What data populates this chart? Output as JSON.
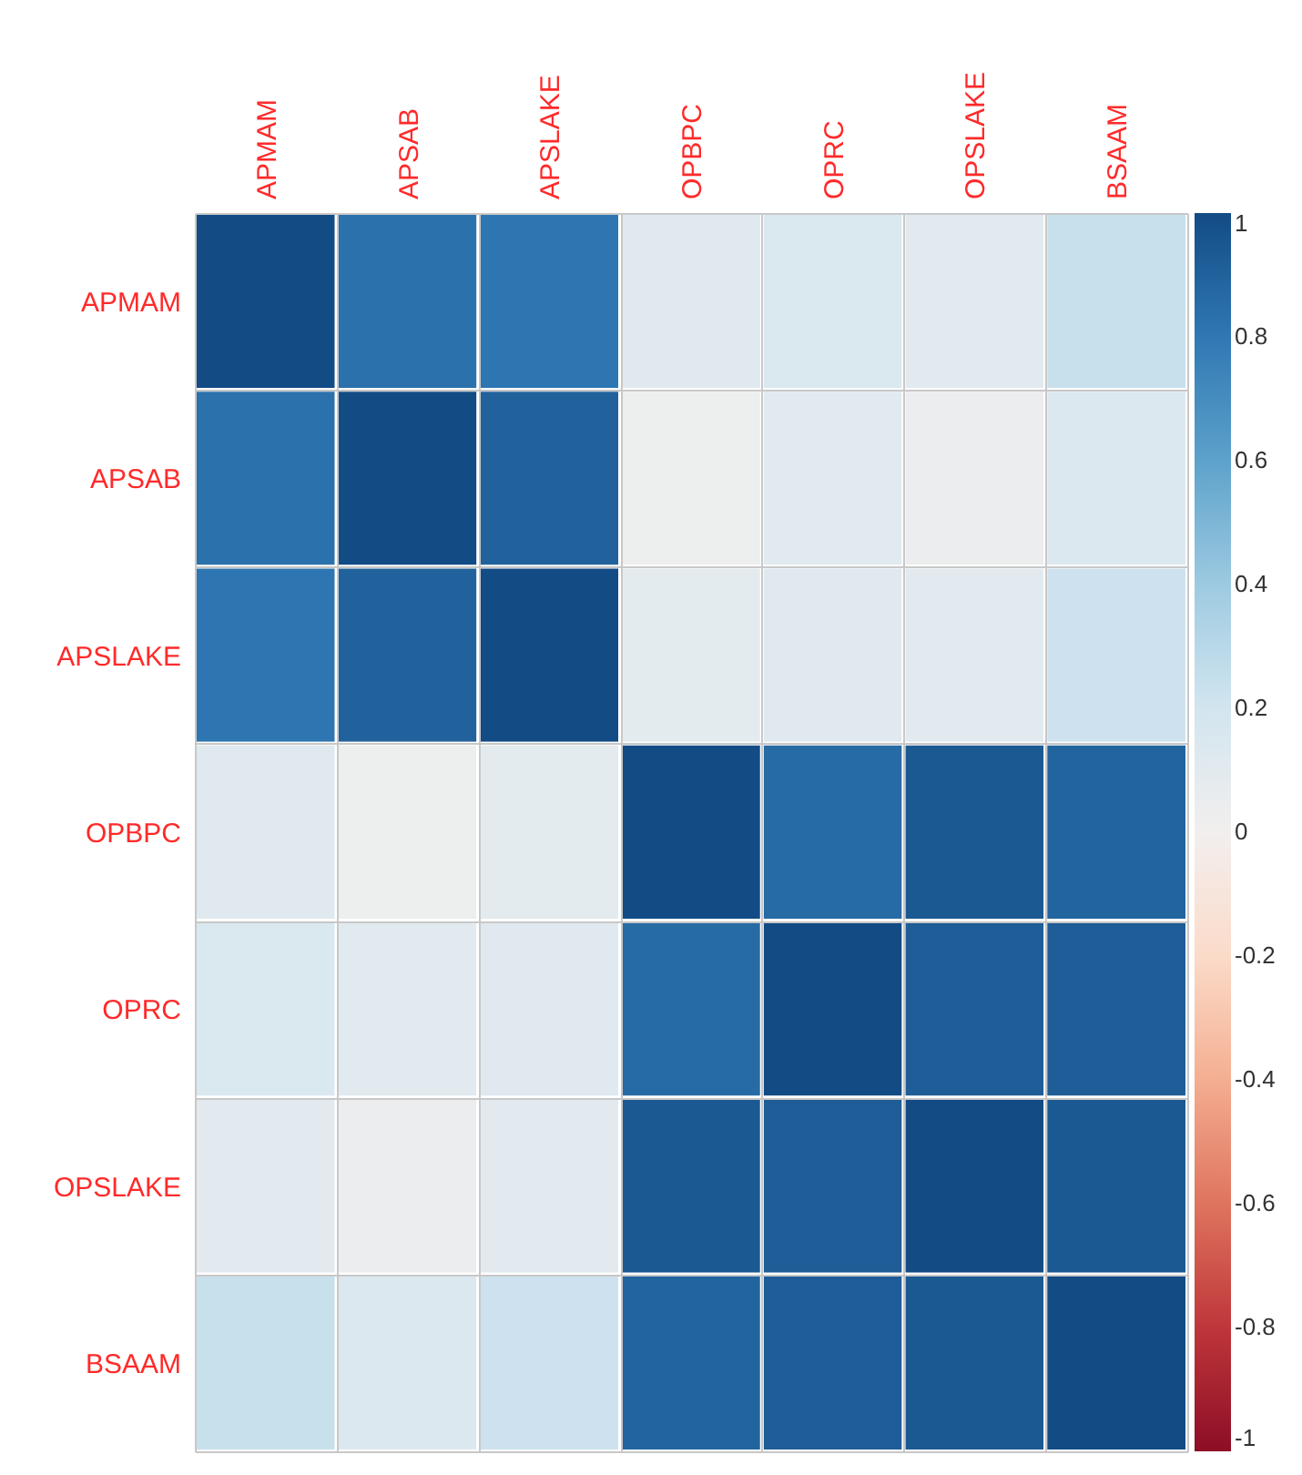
{
  "chart_data": {
    "type": "heatmap",
    "categories": [
      "APMAM",
      "APSAB",
      "APSLAKE",
      "OPBPC",
      "OPRC",
      "OPSLAKE",
      "BSAAM"
    ],
    "y_categories": [
      "APMAM",
      "APSAB",
      "APSLAKE",
      "OPBPC",
      "OPRC",
      "OPSLAKE",
      "BSAAM"
    ],
    "cells": [
      [
        1,
        0.83,
        0.81,
        0.12,
        0.15,
        0.1,
        0.24
      ],
      [
        0.83,
        1,
        0.9,
        0.03,
        0.11,
        0.04,
        0.14
      ],
      [
        0.81,
        0.9,
        1,
        0.09,
        0.12,
        0.1,
        0.22
      ],
      [
        0.12,
        0.03,
        0.09,
        1,
        0.86,
        0.94,
        0.89
      ],
      [
        0.15,
        0.11,
        0.12,
        0.86,
        1,
        0.92,
        0.92
      ],
      [
        0.1,
        0.04,
        0.1,
        0.94,
        0.92,
        1,
        0.94
      ],
      [
        0.24,
        0.14,
        0.22,
        0.89,
        0.92,
        0.94,
        1
      ]
    ],
    "clim": [
      -1,
      1
    ],
    "cticks": [
      -1,
      -0.8,
      -0.6,
      -0.4,
      -0.2,
      0,
      0.2,
      0.4,
      0.6,
      0.8,
      1
    ],
    "grid": true
  }
}
